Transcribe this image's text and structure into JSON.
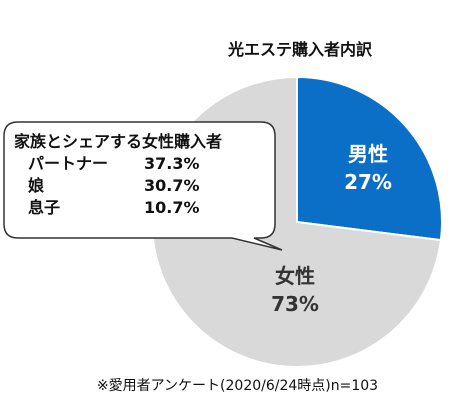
{
  "chart_data": {
    "type": "pie",
    "title": "光エステ購入者内訳",
    "slices": [
      {
        "label": "男性",
        "value": 27,
        "value_label": "27%",
        "color": "#0b6fc7"
      },
      {
        "label": "女性",
        "value": 73,
        "value_label": "73%",
        "color": "#d9d9d9"
      }
    ],
    "start_angle_deg": 0,
    "direction": "clockwise",
    "annotation": {
      "title": "家族とシェアする女性購入者",
      "rows": [
        {
          "name": "パートナー",
          "value": "37.3%"
        },
        {
          "name": "娘",
          "value": "30.7%"
        },
        {
          "name": "息子",
          "value": "10.7%"
        }
      ]
    },
    "footnote": "※愛用者アンケート(2020/6/24時点)n=103"
  }
}
